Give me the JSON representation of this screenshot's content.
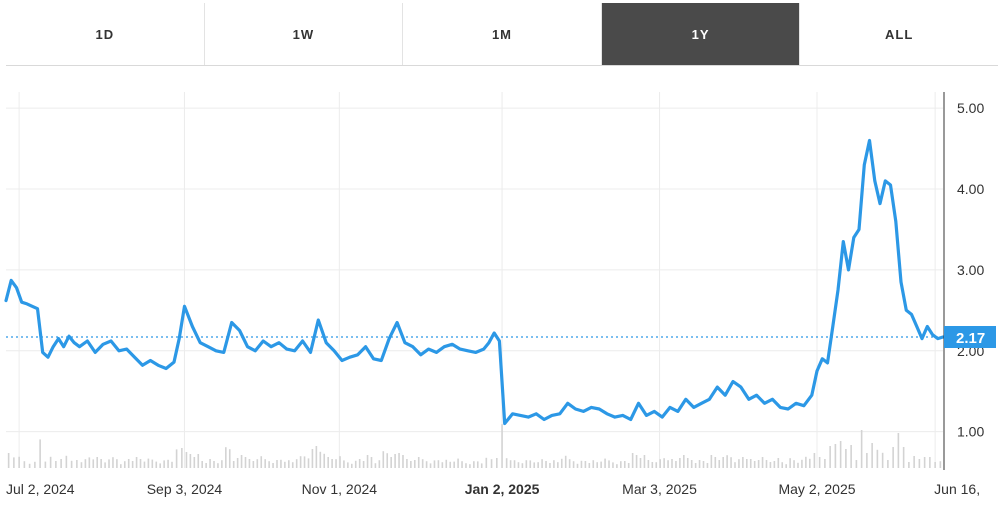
{
  "range_tabs": [
    "1D",
    "1W",
    "1M",
    "1Y",
    "ALL"
  ],
  "active_tab": "1Y",
  "colors": {
    "line": "#2c98e6",
    "active_tab_bg": "#4a4a4a",
    "grid": "#ececec",
    "volume": "#d3d3d3"
  },
  "chart_data": {
    "type": "line",
    "title": "",
    "x_start": "2024-06-27",
    "x_end": "2025-06-19",
    "x_ticks": [
      {
        "date": "2024-07-02",
        "label": "Jul 2, 2024",
        "bold": false
      },
      {
        "date": "2024-09-03",
        "label": "Sep 3, 2024",
        "bold": false
      },
      {
        "date": "2024-11-01",
        "label": "Nov 1, 2024",
        "bold": false
      },
      {
        "date": "2025-01-02",
        "label": "Jan 2, 2025",
        "bold": true
      },
      {
        "date": "2025-03-03",
        "label": "Mar 3, 2025",
        "bold": false
      },
      {
        "date": "2025-05-02",
        "label": "May 2, 2025",
        "bold": false
      },
      {
        "date": "2025-06-16",
        "label": "Jun 16,",
        "bold": false
      }
    ],
    "y_ticks": [
      "1.00",
      "2.00",
      "3.00",
      "4.00",
      "5.00"
    ],
    "ylim": [
      0.55,
      5.2
    ],
    "current_value": 2.17,
    "current_label": "2.17",
    "grid": true,
    "series": [
      {
        "x": [
          "2024-06-27",
          "2024-06-29",
          "2024-07-01",
          "2024-07-03",
          "2024-07-05",
          "2024-07-07",
          "2024-07-09",
          "2024-07-11",
          "2024-07-13",
          "2024-07-15",
          "2024-07-17",
          "2024-07-19",
          "2024-07-21",
          "2024-07-23",
          "2024-07-25",
          "2024-07-28",
          "2024-07-31",
          "2024-08-03",
          "2024-08-06",
          "2024-08-09",
          "2024-08-12",
          "2024-08-15",
          "2024-08-18",
          "2024-08-21",
          "2024-08-24",
          "2024-08-27",
          "2024-08-30",
          "2024-09-01",
          "2024-09-03",
          "2024-09-06",
          "2024-09-09",
          "2024-09-12",
          "2024-09-15",
          "2024-09-18",
          "2024-09-21",
          "2024-09-24",
          "2024-09-27",
          "2024-09-30",
          "2024-10-03",
          "2024-10-06",
          "2024-10-09",
          "2024-10-12",
          "2024-10-15",
          "2024-10-18",
          "2024-10-21",
          "2024-10-24",
          "2024-10-27",
          "2024-10-30",
          "2024-11-02",
          "2024-11-05",
          "2024-11-08",
          "2024-11-11",
          "2024-11-14",
          "2024-11-17",
          "2024-11-20",
          "2024-11-23",
          "2024-11-26",
          "2024-11-29",
          "2024-12-02",
          "2024-12-05",
          "2024-12-08",
          "2024-12-11",
          "2024-12-14",
          "2024-12-17",
          "2024-12-20",
          "2024-12-23",
          "2024-12-26",
          "2024-12-28",
          "2024-12-30",
          "2025-01-01",
          "2025-01-03",
          "2025-01-06",
          "2025-01-09",
          "2025-01-12",
          "2025-01-15",
          "2025-01-18",
          "2025-01-21",
          "2025-01-24",
          "2025-01-27",
          "2025-01-30",
          "2025-02-02",
          "2025-02-05",
          "2025-02-08",
          "2025-02-11",
          "2025-02-14",
          "2025-02-17",
          "2025-02-20",
          "2025-02-23",
          "2025-02-26",
          "2025-03-01",
          "2025-03-04",
          "2025-03-07",
          "2025-03-10",
          "2025-03-13",
          "2025-03-16",
          "2025-03-19",
          "2025-03-22",
          "2025-03-25",
          "2025-03-28",
          "2025-03-31",
          "2025-04-03",
          "2025-04-06",
          "2025-04-09",
          "2025-04-12",
          "2025-04-15",
          "2025-04-18",
          "2025-04-21",
          "2025-04-24",
          "2025-04-27",
          "2025-04-30",
          "2025-05-02",
          "2025-05-04",
          "2025-05-06",
          "2025-05-08",
          "2025-05-10",
          "2025-05-12",
          "2025-05-14",
          "2025-05-16",
          "2025-05-18",
          "2025-05-20",
          "2025-05-22",
          "2025-05-24",
          "2025-05-26",
          "2025-05-28",
          "2025-05-30",
          "2025-06-01",
          "2025-06-03",
          "2025-06-05",
          "2025-06-07",
          "2025-06-09",
          "2025-06-11",
          "2025-06-13",
          "2025-06-15",
          "2025-06-17",
          "2025-06-19"
        ],
        "y": [
          2.62,
          2.87,
          2.78,
          2.6,
          2.58,
          2.55,
          2.52,
          1.98,
          1.92,
          2.05,
          2.15,
          2.05,
          2.18,
          2.1,
          2.05,
          2.12,
          1.98,
          2.08,
          2.12,
          2.0,
          2.02,
          1.92,
          1.82,
          1.88,
          1.82,
          1.78,
          1.86,
          2.15,
          2.55,
          2.3,
          2.1,
          2.05,
          2.0,
          1.98,
          2.35,
          2.25,
          2.05,
          2.0,
          2.12,
          2.05,
          2.1,
          2.02,
          2.0,
          2.12,
          1.98,
          2.38,
          2.1,
          2.0,
          1.88,
          1.92,
          1.95,
          2.05,
          1.9,
          1.88,
          2.15,
          2.35,
          2.1,
          2.05,
          1.95,
          2.02,
          1.98,
          2.05,
          2.08,
          2.02,
          2.0,
          1.98,
          2.02,
          2.1,
          2.22,
          2.12,
          1.1,
          1.22,
          1.2,
          1.18,
          1.22,
          1.15,
          1.2,
          1.22,
          1.35,
          1.28,
          1.25,
          1.3,
          1.28,
          1.22,
          1.18,
          1.2,
          1.15,
          1.35,
          1.2,
          1.25,
          1.18,
          1.3,
          1.25,
          1.4,
          1.3,
          1.35,
          1.4,
          1.55,
          1.45,
          1.62,
          1.55,
          1.4,
          1.45,
          1.35,
          1.4,
          1.3,
          1.28,
          1.35,
          1.32,
          1.45,
          1.75,
          1.9,
          1.85,
          2.3,
          2.75,
          3.35,
          3.0,
          3.4,
          3.5,
          4.3,
          4.6,
          4.1,
          3.82,
          4.1,
          4.05,
          3.6,
          2.85,
          2.5,
          2.45,
          2.3,
          2.15,
          2.3,
          2.2,
          2.15,
          2.17
        ]
      }
    ],
    "volume_labels_shown": false
  }
}
